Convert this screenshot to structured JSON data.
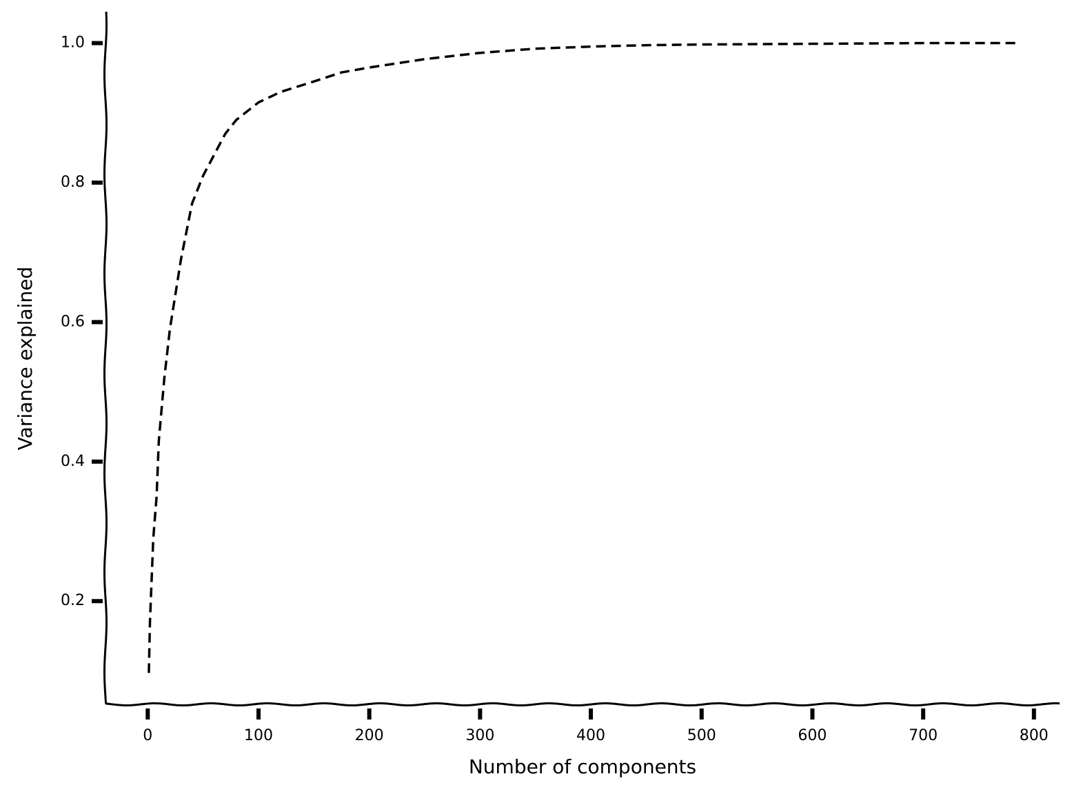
{
  "chart_data": {
    "type": "line",
    "xlabel": "Number of components",
    "ylabel": "Variance explained",
    "x": [
      1,
      2,
      5,
      8,
      10,
      15,
      20,
      25,
      30,
      40,
      50,
      60,
      70,
      80,
      100,
      120,
      150,
      175,
      200,
      250,
      300,
      350,
      400,
      450,
      500,
      600,
      700,
      784
    ],
    "values": [
      0.097,
      0.17,
      0.29,
      0.35,
      0.43,
      0.52,
      0.59,
      0.64,
      0.69,
      0.77,
      0.81,
      0.84,
      0.87,
      0.89,
      0.915,
      0.93,
      0.945,
      0.958,
      0.965,
      0.977,
      0.986,
      0.992,
      0.995,
      0.997,
      0.998,
      0.999,
      1.0,
      1.0
    ],
    "color": "#000000",
    "line_style": "dashed",
    "xlim": [
      -38.15,
      823.15
    ],
    "ylim": [
      0.052,
      1.045
    ],
    "xticks": [
      0,
      100,
      200,
      300,
      400,
      500,
      600,
      700,
      800
    ],
    "yticks": [
      0.2,
      0.4,
      0.6,
      0.8,
      {
        "value": 1.0,
        "label": "1.0"
      }
    ]
  }
}
